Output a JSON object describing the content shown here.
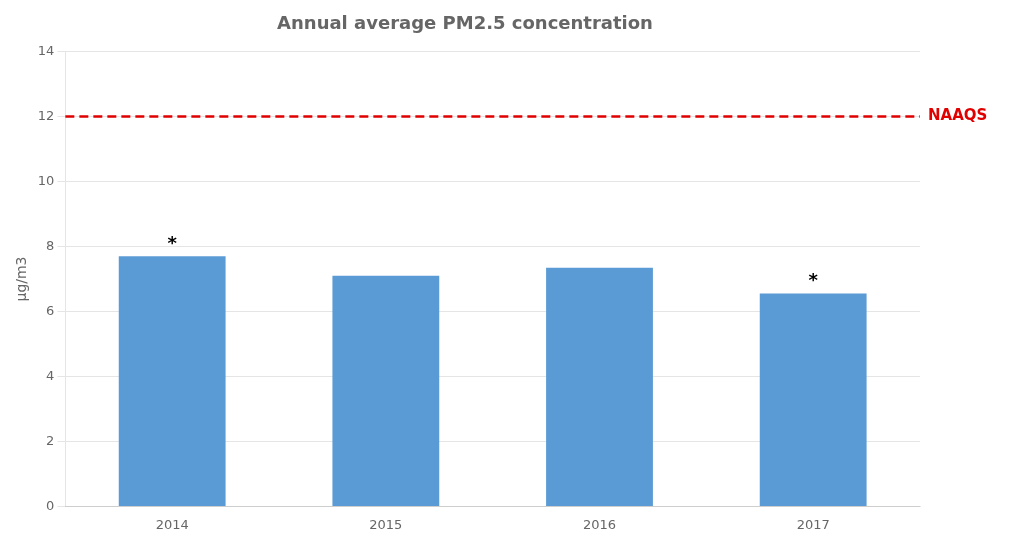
{
  "chart_data": {
    "type": "bar",
    "title": "Annual average PM2.5 concentration",
    "categories": [
      "2014",
      "2015",
      "2016",
      "2017"
    ],
    "values": [
      7.7,
      7.1,
      7.35,
      6.55
    ],
    "color": "#5b9bd5",
    "ylabel": "μg/m3",
    "ylim": [
      0,
      14
    ],
    "yticks": [
      0,
      2,
      4,
      6,
      8,
      10,
      12,
      14
    ],
    "grid": true,
    "annotations": [
      {
        "type": "hline",
        "y": 12,
        "text": "NAAQS",
        "color": "#e00000",
        "line_style": "dashed"
      },
      {
        "type": "text",
        "text": "*",
        "x": "2014"
      },
      {
        "type": "text",
        "text": "*",
        "x": "2017"
      }
    ]
  }
}
